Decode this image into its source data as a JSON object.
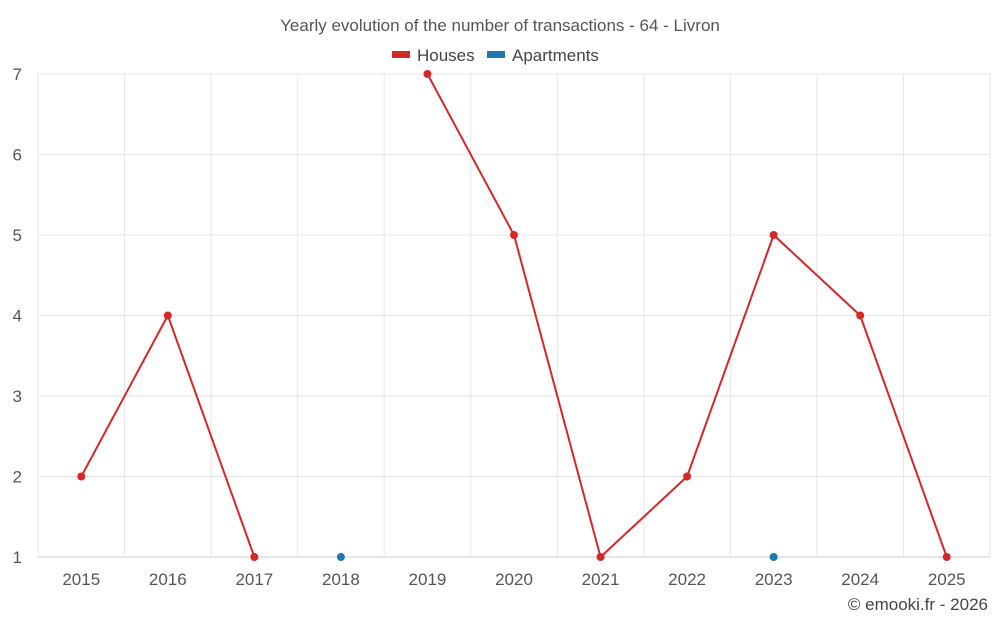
{
  "chart_data": {
    "type": "line",
    "title": "Yearly evolution of the number of transactions - 64 - Livron",
    "x": [
      "2015",
      "2016",
      "2017",
      "2018",
      "2019",
      "2020",
      "2021",
      "2022",
      "2023",
      "2024",
      "2025"
    ],
    "ylim": [
      1,
      7
    ],
    "yticks": [
      1,
      2,
      3,
      4,
      5,
      6,
      7
    ],
    "grid": true,
    "legend": "top-center",
    "series": [
      {
        "name": "Houses",
        "color": "#d62728",
        "values": [
          2,
          4,
          1,
          null,
          7,
          5,
          1,
          2,
          5,
          4,
          1
        ]
      },
      {
        "name": "Apartments",
        "color": "#1f77b4",
        "values": [
          null,
          null,
          null,
          1,
          null,
          null,
          null,
          null,
          1,
          null,
          null
        ]
      }
    ]
  },
  "credit": "© emooki.fr - 2026"
}
